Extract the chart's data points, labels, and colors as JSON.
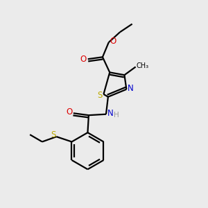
{
  "background_color": "#ebebeb",
  "atom_colors": {
    "C": "#000000",
    "N": "#0000cc",
    "O": "#dd0000",
    "S": "#bbaa00",
    "H": "#999999"
  },
  "figsize": [
    3.0,
    3.0
  ],
  "dpi": 100
}
